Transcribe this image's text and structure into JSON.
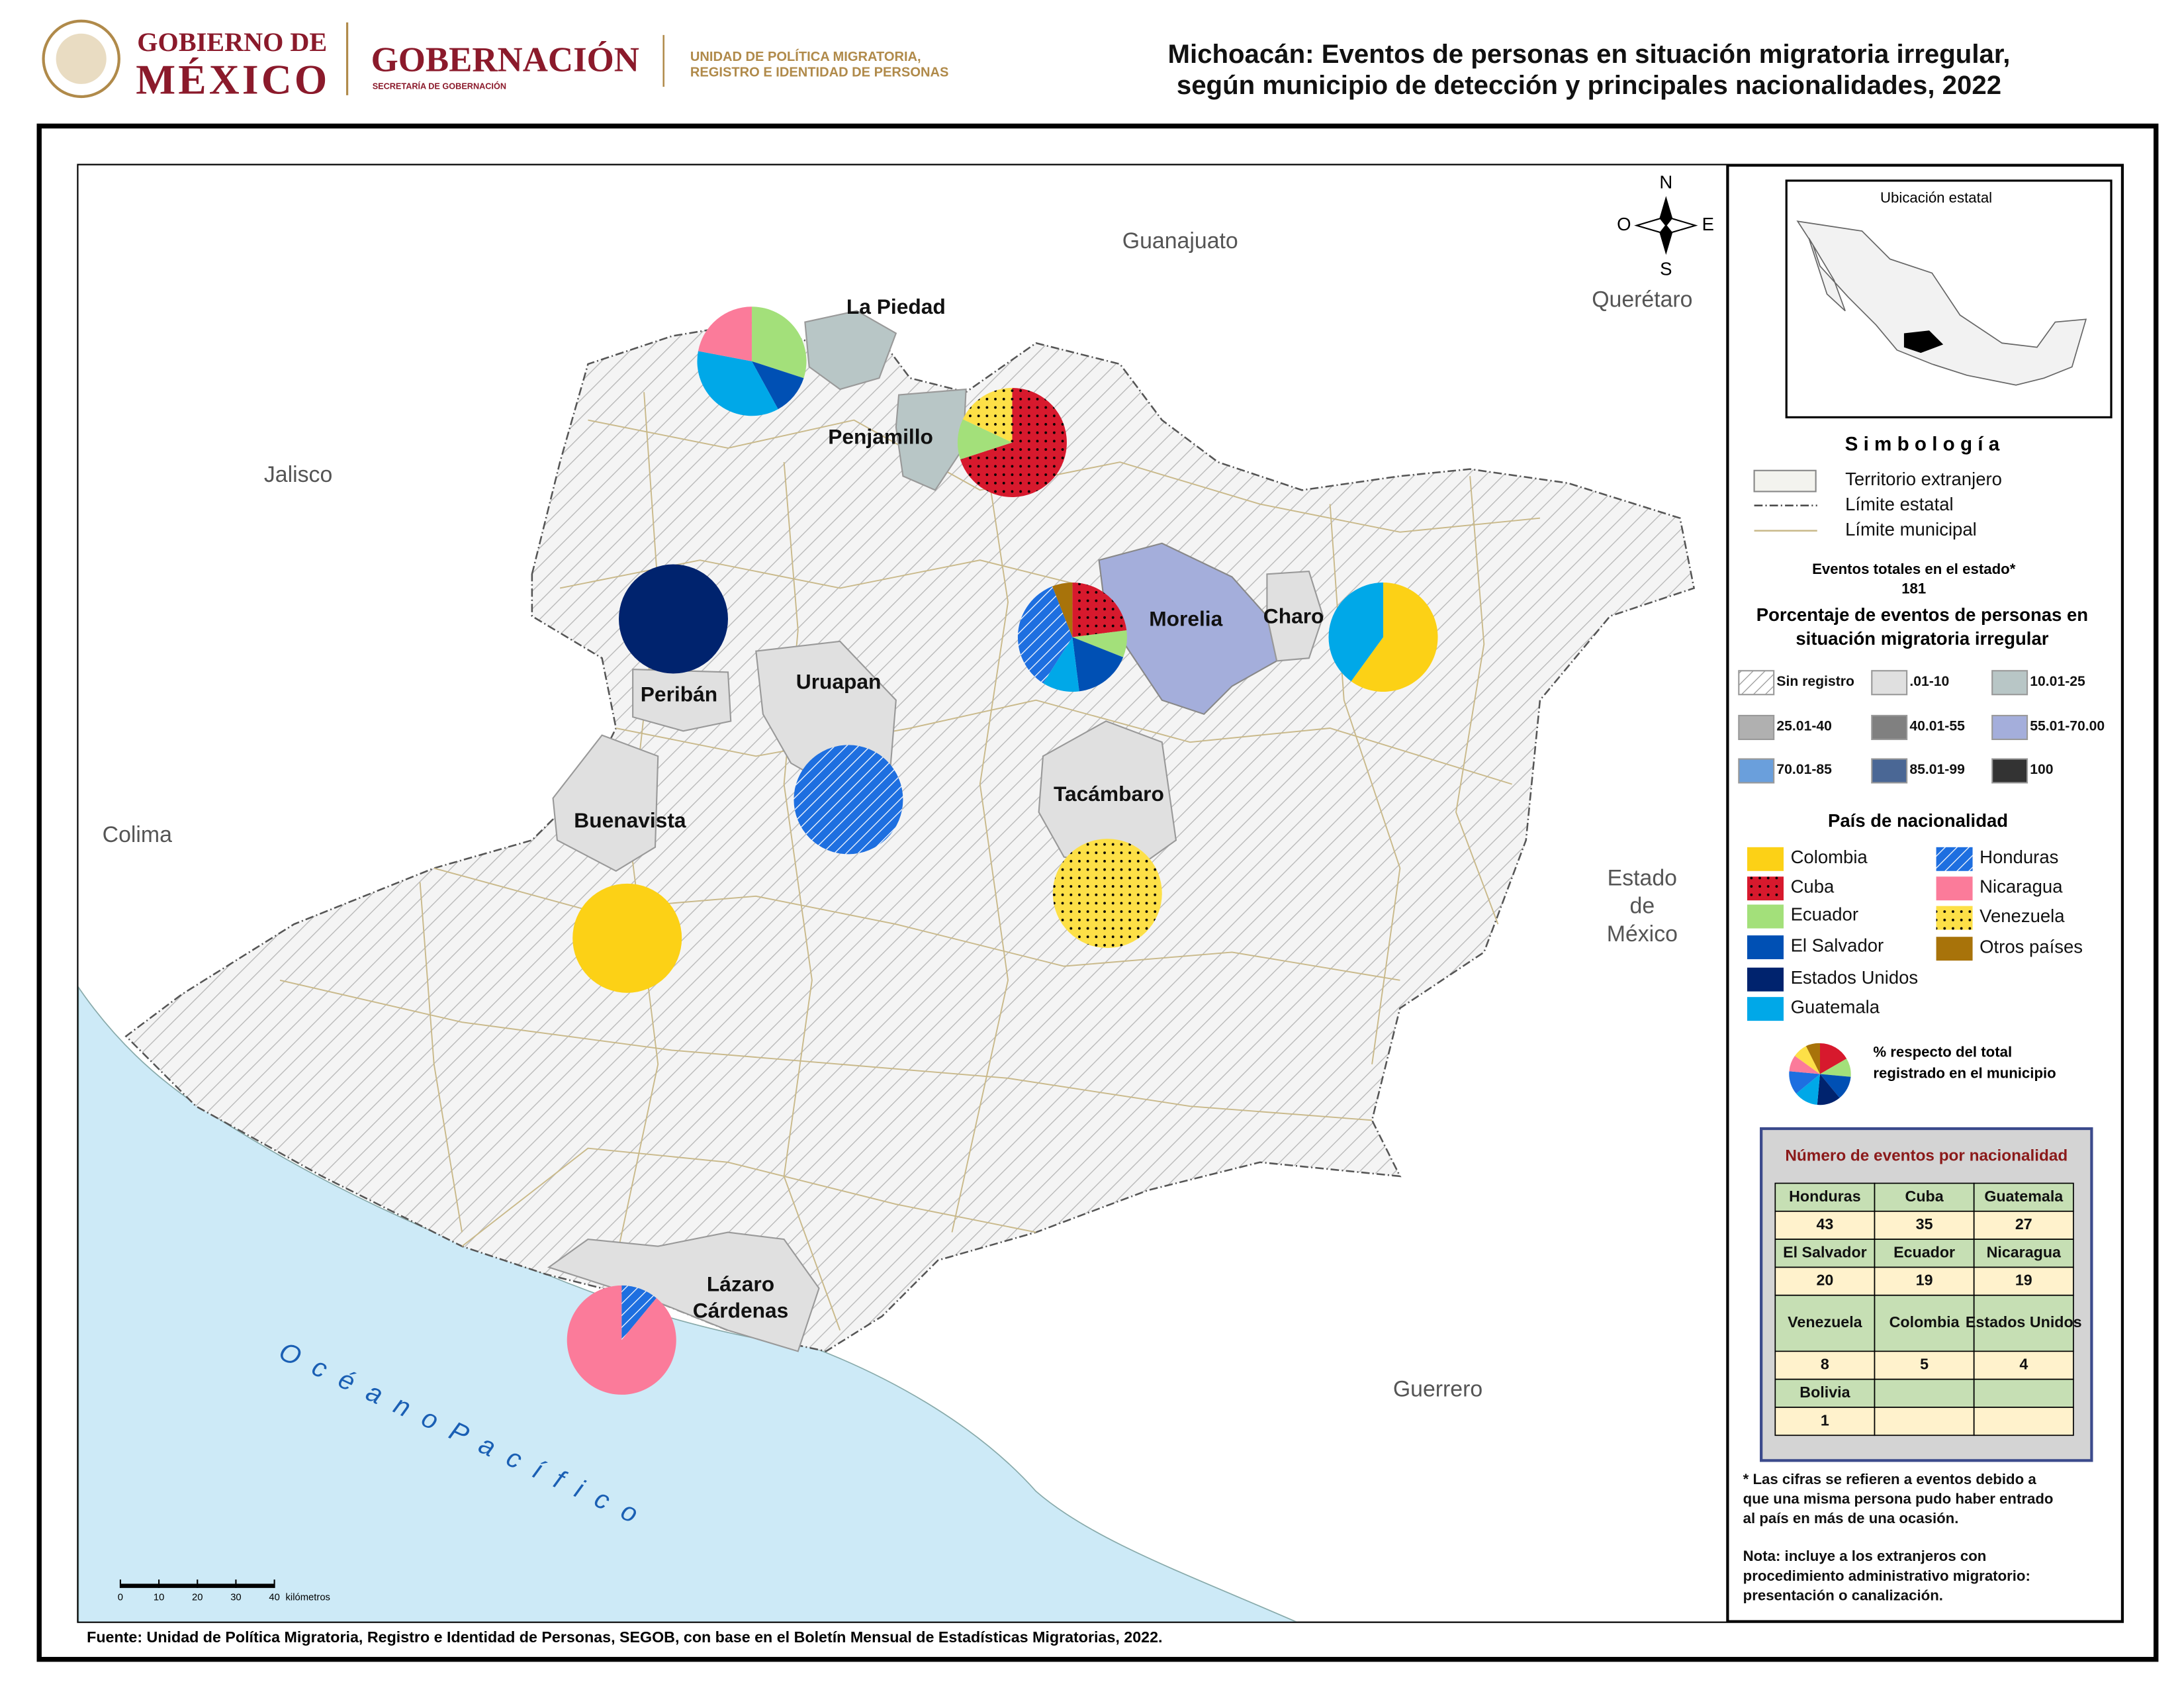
{
  "header": {
    "gov1": "GOBIERNO DE",
    "gov2": "MÉXICO",
    "ministry": "GOBERNACIÓN",
    "ministry_sub": "SECRETARÍA DE GOBERNACIÓN",
    "unit": [
      "UNIDAD DE POLÍTICA MIGRATORIA,",
      "REGISTRO E IDENTIDAD DE PERSONAS"
    ],
    "title": [
      "Michoacán: Eventos de personas en situación migratoria irregular,",
      "según municipio de detección y principales nacionalidades, 2022"
    ]
  },
  "map": {
    "neighbors": {
      "guanajuato": "Guanajuato",
      "queretaro": "Querétaro",
      "jalisco": "Jalisco",
      "colima": "Colima",
      "edomex": [
        "Estado",
        "de",
        "México"
      ],
      "guerrero": "Guerrero"
    },
    "ocean": "O c é a n o   P a c í f i c o",
    "compass": {
      "n": "N",
      "s": "S",
      "e": "E",
      "o": "O"
    },
    "municipalities": {
      "la_piedad": "La Piedad",
      "penjamillo": "Penjamillo",
      "periban": "Peribán",
      "uruapan": "Uruapan",
      "morelia": "Morelia",
      "charo": "Charo",
      "buenavista": "Buenavista",
      "tacambaro": "Tacámbaro",
      "lazaro": [
        "Lázaro",
        "Cárdenas"
      ]
    },
    "scale": {
      "ticks": [
        0,
        10,
        20,
        30,
        40
      ],
      "unit": "kilómetros"
    }
  },
  "pies": [
    {
      "slices": [
        {
          "nationality": "Ecuador",
          "value": 30
        },
        {
          "nationality": "El Salvador",
          "value": 12
        },
        {
          "nationality": "Guatemala",
          "value": 36
        },
        {
          "nationality": "Nicaragua",
          "value": 22
        }
      ]
    },
    {
      "slices": [
        {
          "nationality": "Cuba",
          "value": 70
        },
        {
          "nationality": "Ecuador",
          "value": 12
        },
        {
          "nationality": "Venezuela",
          "value": 18
        }
      ]
    },
    {
      "slices": [
        {
          "nationality": "Estados Unidos",
          "value": 100
        }
      ]
    },
    {
      "slices": [
        {
          "nationality": "Cuba",
          "value": 23
        },
        {
          "nationality": "Ecuador",
          "value": 8
        },
        {
          "nationality": "El Salvador",
          "value": 17
        },
        {
          "nationality": "Guatemala",
          "value": 11
        },
        {
          "nationality": "Honduras",
          "value": 35
        },
        {
          "nationality": "Otros países",
          "value": 6
        }
      ]
    },
    {
      "slices": [
        {
          "nationality": "Colombia",
          "value": 60
        },
        {
          "nationality": "Guatemala",
          "value": 40
        }
      ]
    },
    {
      "slices": [
        {
          "nationality": "Honduras",
          "value": 100
        }
      ]
    },
    {
      "slices": [
        {
          "nationality": "Colombia",
          "value": 100
        }
      ]
    },
    {
      "slices": [
        {
          "nationality": "Venezuela",
          "value": 100
        }
      ]
    },
    {
      "slices": [
        {
          "nationality": "Honduras",
          "value": 11
        },
        {
          "nationality": "Nicaragua",
          "value": 89
        }
      ]
    }
  ],
  "inset": {
    "title": "Ubicación estatal"
  },
  "legend": {
    "title": "S i m b o l o g í a",
    "symbols": [
      "Territorio extranjero",
      "Límite estatal",
      "Límite municipal"
    ],
    "total_label": "Eventos totales en el estado*",
    "total": 181,
    "pct_title": [
      "Porcentaje de eventos de personas en",
      "situación migratoria irregular"
    ],
    "classes": [
      {
        "label": "Sin registro",
        "color": "#ffffff",
        "pattern": "hatch"
      },
      {
        "label": ".01-10",
        "color": "#e0e0e0"
      },
      {
        "label": "10.01-25",
        "color": "#b8c6c6"
      },
      {
        "label": "25.01-40",
        "color": "#b0b0b0"
      },
      {
        "label": "40.01-55",
        "color": "#808080"
      },
      {
        "label": "55.01-70.00",
        "color": "#a4aedb"
      },
      {
        "label": "70.01-85",
        "color": "#6a9fdc"
      },
      {
        "label": "85.01-99",
        "color": "#4a6795"
      },
      {
        "label": "100",
        "color": "#333333"
      }
    ],
    "nat_title": "País de nacionalidad",
    "nationalities": [
      {
        "name": "Colombia",
        "color": "#fcd116"
      },
      {
        "name": "Cuba",
        "color": "#d7192d",
        "pattern": "dots"
      },
      {
        "name": "Ecuador",
        "color": "#a3e07a"
      },
      {
        "name": "El Salvador",
        "color": "#0050b4"
      },
      {
        "name": "Estados Unidos",
        "color": "#00236e"
      },
      {
        "name": "Guatemala",
        "color": "#00a8e8"
      },
      {
        "name": "Honduras",
        "color": "#1e6fe0",
        "pattern": "hatch"
      },
      {
        "name": "Nicaragua",
        "color": "#fb7b9a"
      },
      {
        "name": "Venezuela",
        "color": "#fde047",
        "pattern": "dots"
      },
      {
        "name": "Otros países",
        "color": "#a8730a"
      }
    ],
    "pie_note": [
      "%  respecto del total",
      "registrado en el municipio"
    ]
  },
  "table": {
    "title": "Número de eventos por nacionalidad",
    "rows": [
      [
        "Honduras",
        "Cuba",
        "Guatemala"
      ],
      [
        43,
        35,
        27
      ],
      [
        "El Salvador",
        "Ecuador",
        "Nicaragua"
      ],
      [
        20,
        19,
        19
      ],
      [
        "Venezuela",
        "Colombia",
        "Estados Unidos"
      ],
      [
        8,
        5,
        4
      ],
      [
        "Bolivia"
      ],
      [
        1
      ]
    ]
  },
  "notes": [
    [
      "* Las cifras se refieren a eventos debido a",
      "que una misma persona pudo haber entrado",
      "al país en más de una ocasión."
    ],
    [
      "Nota: incluye a los extranjeros con",
      "procedimiento administrativo migratorio:",
      "presentación o canalización."
    ]
  ],
  "source": "Fuente: Unidad de Política Migratoria, Registro e Identidad de Personas, SEGOB, con base en el Boletín Mensual de Estadísticas Migratorias, 2022."
}
